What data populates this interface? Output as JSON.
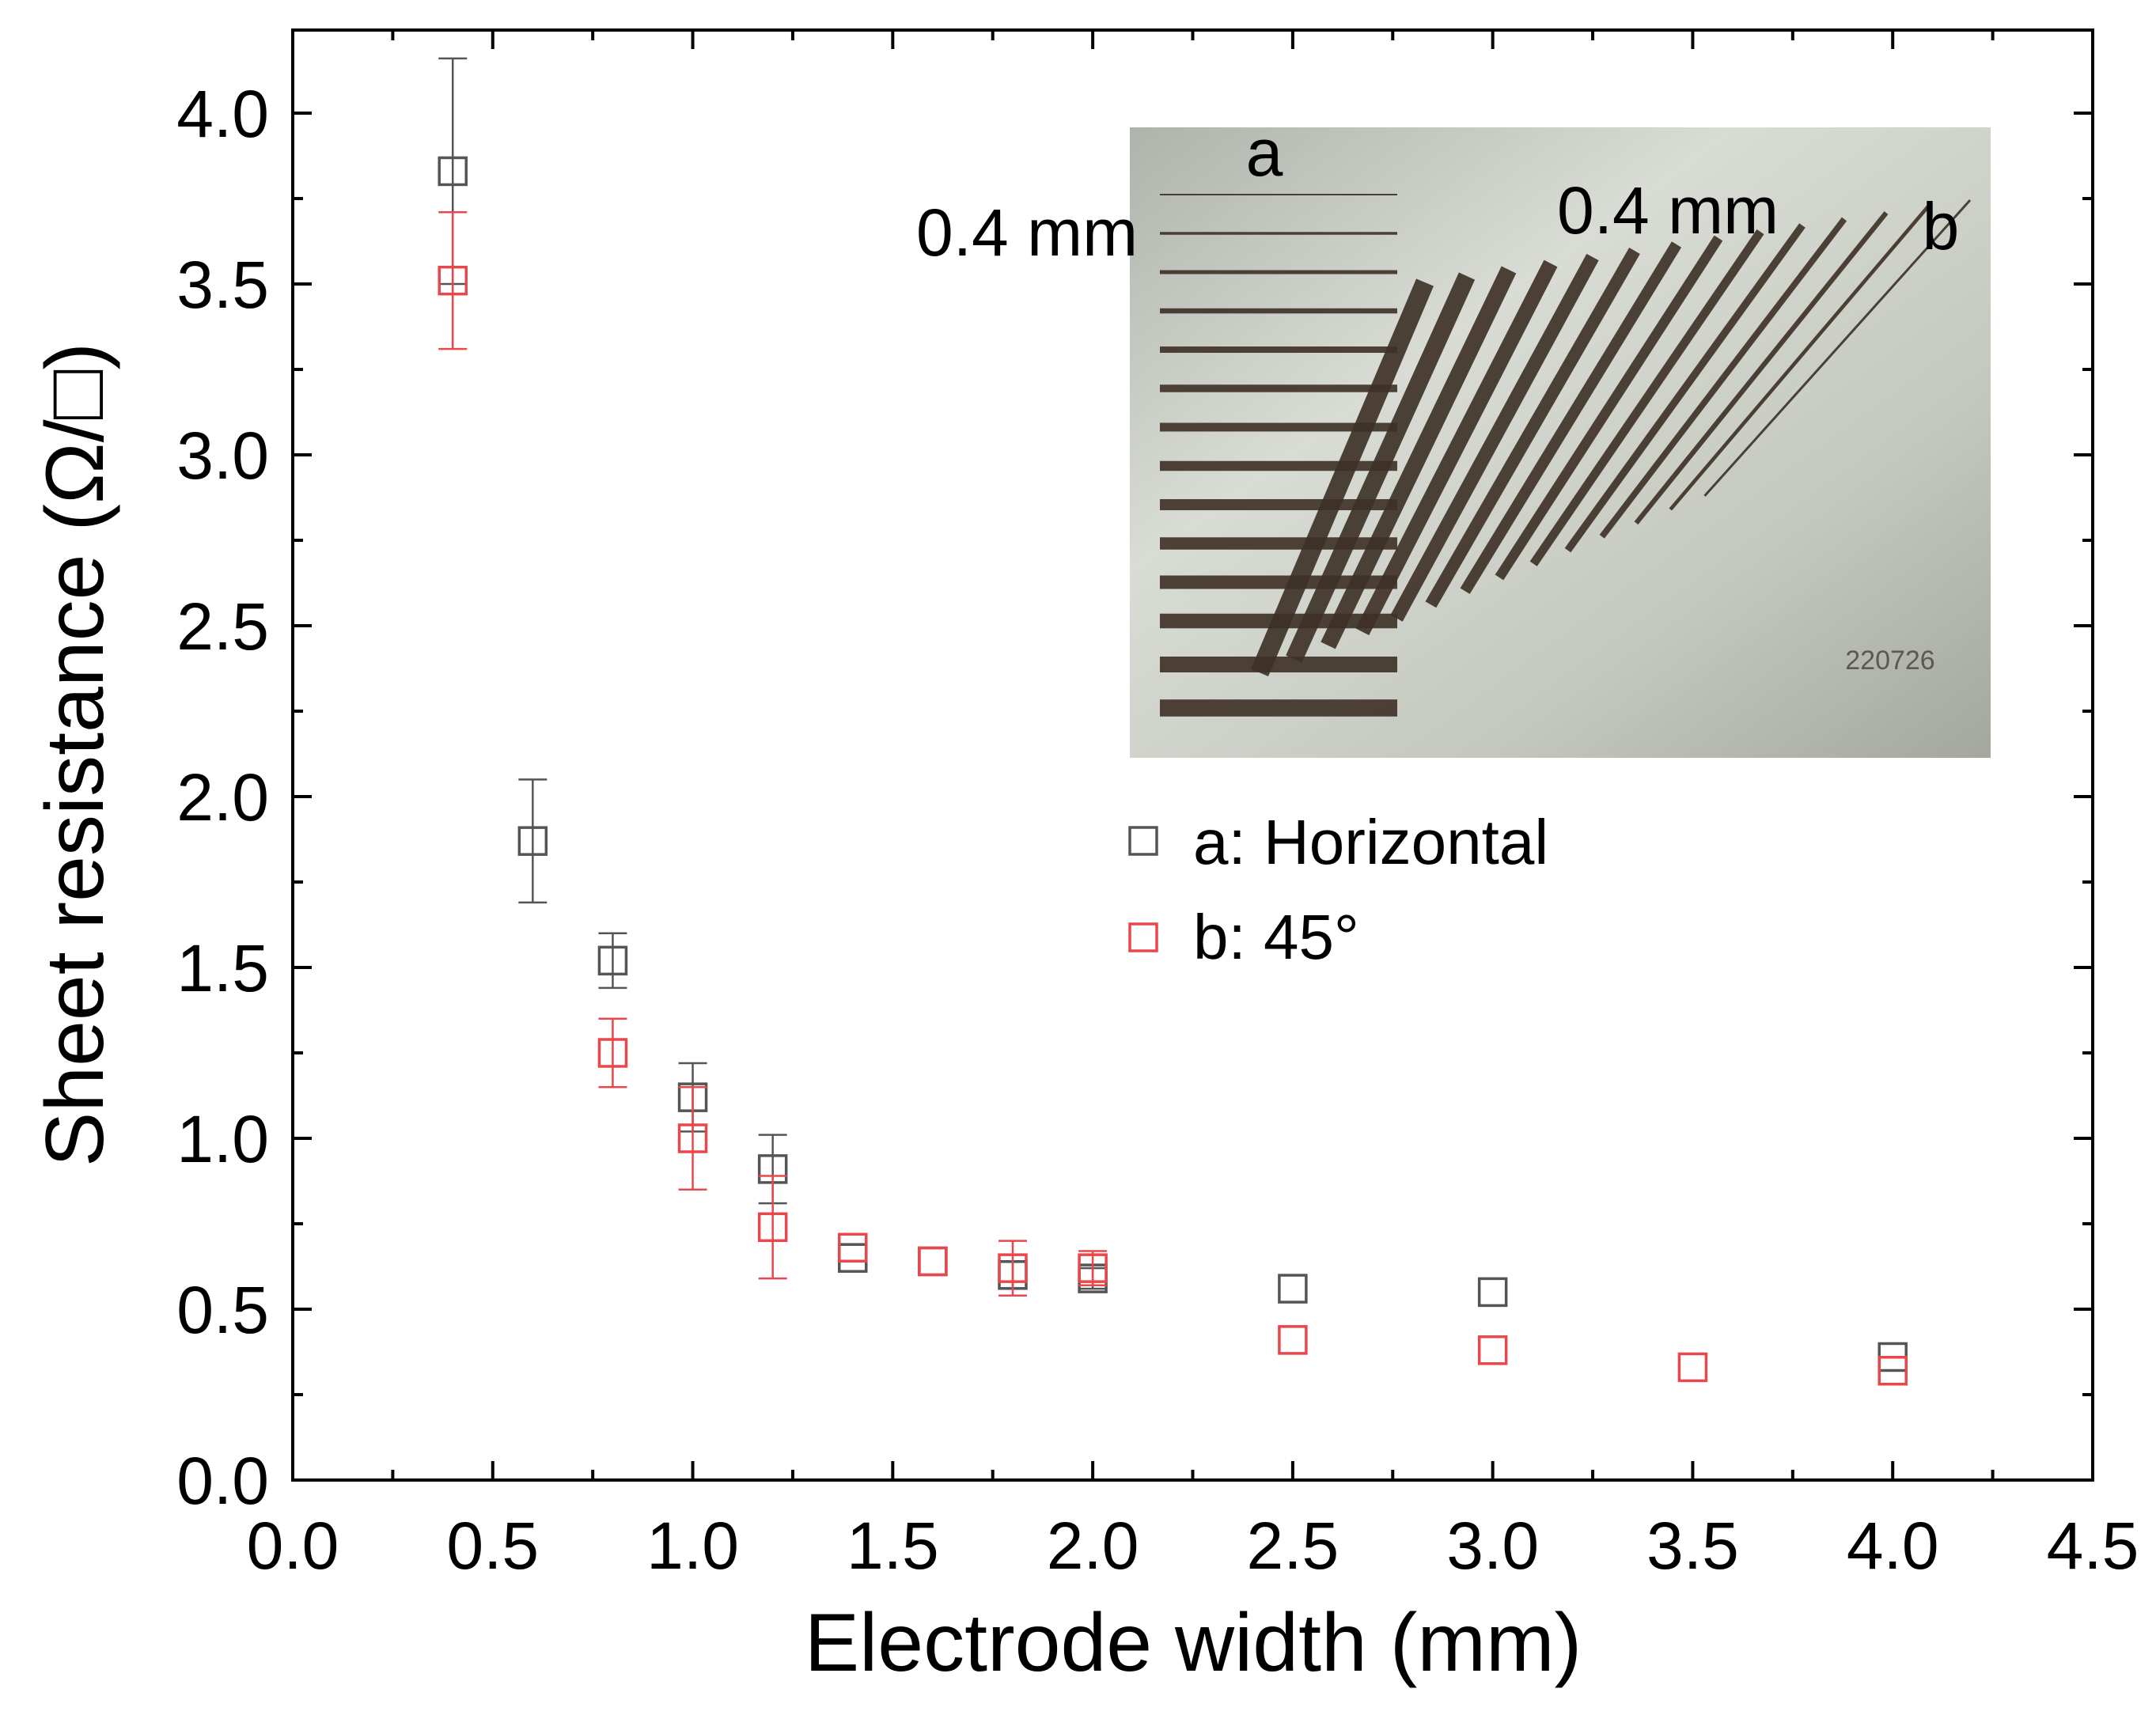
{
  "chart_data": {
    "type": "scatter",
    "xlabel": "Electrode width (mm)",
    "ylabel": "Sheet resistance (Ω/□)",
    "xlim": [
      0.0,
      4.5
    ],
    "ylim": [
      0.0,
      4.25
    ],
    "x_ticks": [
      "0.0",
      "0.5",
      "1.0",
      "1.5",
      "2.0",
      "2.5",
      "3.0",
      "3.5",
      "4.0",
      "4.5"
    ],
    "y_ticks": [
      "0.0",
      "0.5",
      "1.0",
      "1.5",
      "2.0",
      "2.5",
      "3.0",
      "3.5",
      "4.0"
    ],
    "x_tick_values": [
      0.0,
      0.5,
      1.0,
      1.5,
      2.0,
      2.5,
      3.0,
      3.5,
      4.0,
      4.5
    ],
    "y_tick_values": [
      0.0,
      0.5,
      1.0,
      1.5,
      2.0,
      2.5,
      3.0,
      3.5,
      4.0
    ],
    "grid": false,
    "legend_position": "center-right",
    "series": [
      {
        "name": "a: Horizontal",
        "color": "#555555",
        "marker": "open-square",
        "points": [
          {
            "x": 0.4,
            "y": 3.83,
            "err": 0.33
          },
          {
            "x": 0.6,
            "y": 1.87,
            "err": 0.18
          },
          {
            "x": 0.8,
            "y": 1.52,
            "err": 0.08
          },
          {
            "x": 1.0,
            "y": 1.12,
            "err": 0.1
          },
          {
            "x": 1.2,
            "y": 0.91,
            "err": 0.1
          },
          {
            "x": 1.4,
            "y": 0.65,
            "err": 0.0
          },
          {
            "x": 1.6,
            "y": 0.64,
            "err": 0.0
          },
          {
            "x": 1.8,
            "y": 0.6,
            "err": 0.04
          },
          {
            "x": 2.0,
            "y": 0.59,
            "err": 0.03
          },
          {
            "x": 2.5,
            "y": 0.56,
            "err": 0.0
          },
          {
            "x": 3.0,
            "y": 0.55,
            "err": 0.0
          },
          {
            "x": 4.0,
            "y": 0.36,
            "err": 0.0
          }
        ]
      },
      {
        "name": "b: 45°",
        "color": "#e8474c",
        "marker": "open-square",
        "points": [
          {
            "x": 0.4,
            "y": 3.51,
            "err": 0.2
          },
          {
            "x": 0.8,
            "y": 1.25,
            "err": 0.1
          },
          {
            "x": 1.0,
            "y": 1.0,
            "err": 0.15
          },
          {
            "x": 1.2,
            "y": 0.74,
            "err": 0.15
          },
          {
            "x": 1.4,
            "y": 0.68,
            "err": 0.0
          },
          {
            "x": 1.6,
            "y": 0.64,
            "err": 0.0
          },
          {
            "x": 1.8,
            "y": 0.62,
            "err": 0.08
          },
          {
            "x": 2.0,
            "y": 0.62,
            "err": 0.05
          },
          {
            "x": 2.5,
            "y": 0.41,
            "err": 0.0
          },
          {
            "x": 3.0,
            "y": 0.38,
            "err": 0.0
          },
          {
            "x": 3.5,
            "y": 0.33,
            "err": 0.0
          },
          {
            "x": 4.0,
            "y": 0.32,
            "err": 0.0
          }
        ]
      }
    ],
    "inset": {
      "label_a": "a",
      "label_b": "b",
      "width_label_a": "0.4 mm",
      "width_label_b": "0.4 mm",
      "stamp": "220726"
    }
  },
  "colors": {
    "axis": "#000000",
    "series_a": "#555555",
    "series_b": "#e8474c",
    "inset_bg": "#c9cdc4",
    "stripe": "#3d3026"
  }
}
